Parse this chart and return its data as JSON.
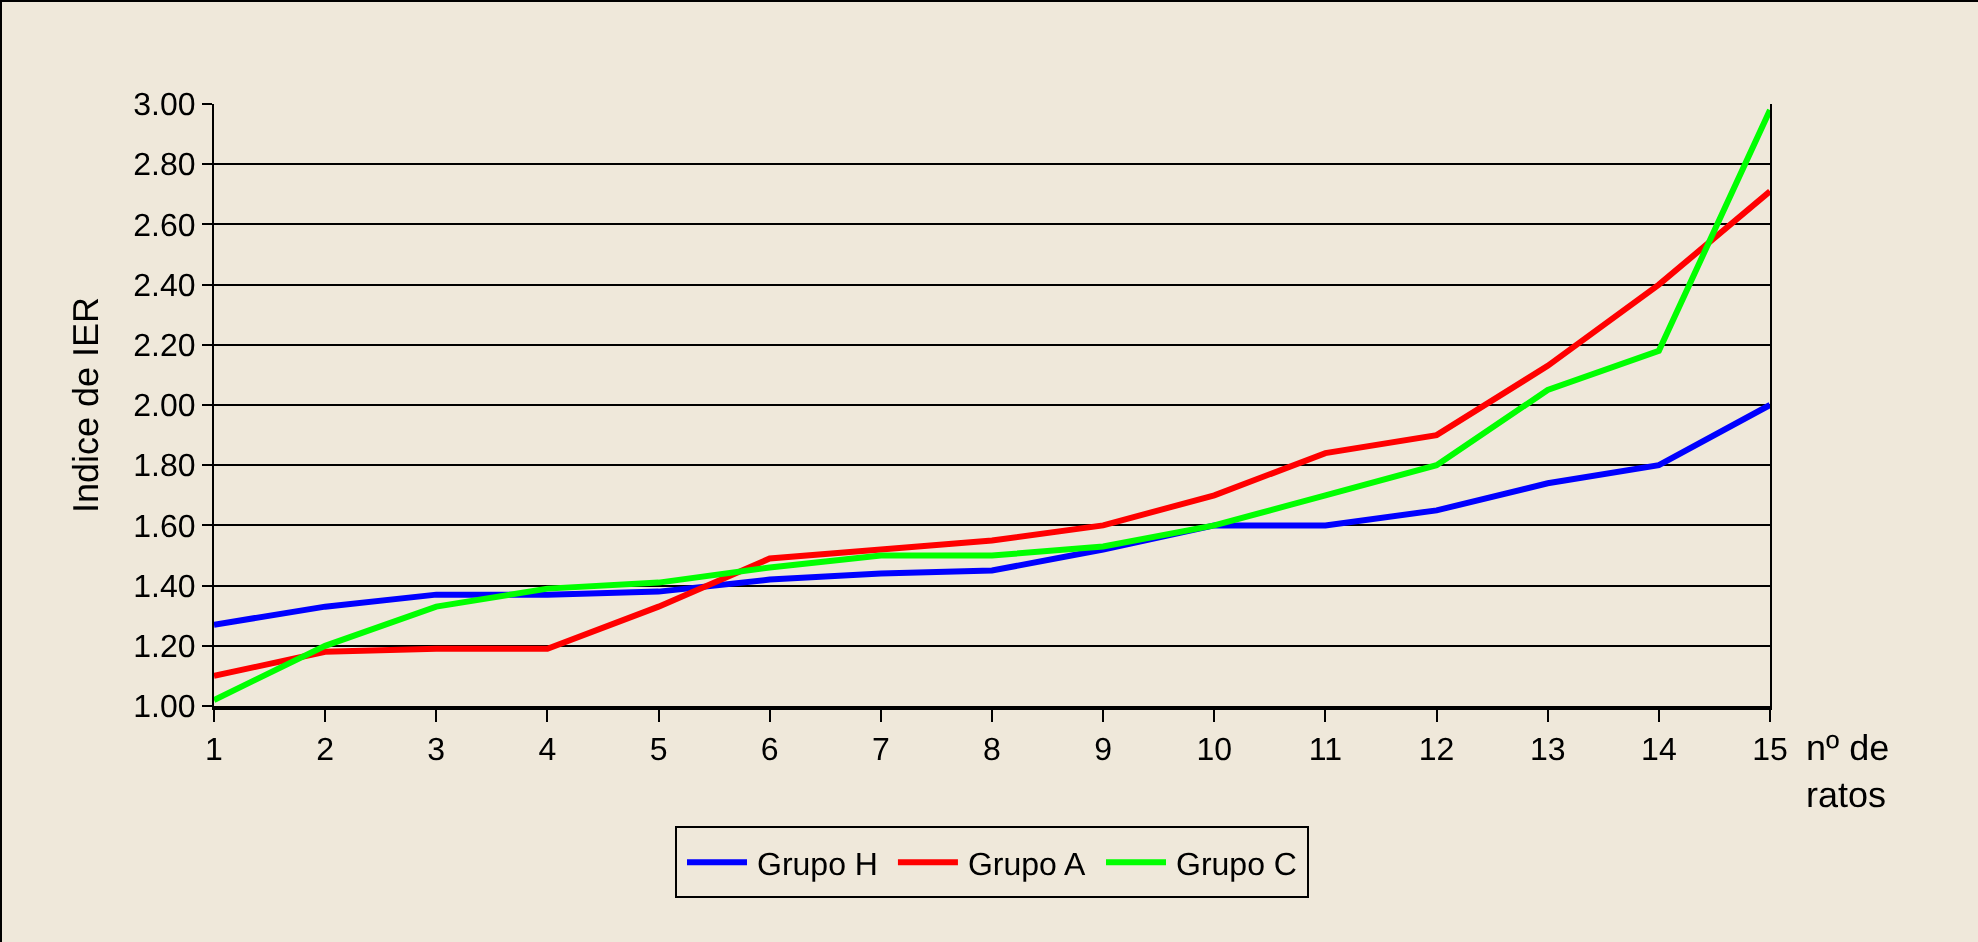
{
  "chart_data": {
    "type": "line",
    "xlabel": "nº de ratos",
    "ylabel": "Indice de IER",
    "x": [
      1,
      2,
      3,
      4,
      5,
      6,
      7,
      8,
      9,
      10,
      11,
      12,
      13,
      14,
      15
    ],
    "xlim": [
      1,
      15
    ],
    "xticks": [
      1,
      2,
      3,
      4,
      5,
      6,
      7,
      8,
      9,
      10,
      11,
      12,
      13,
      14,
      15
    ],
    "ylim": [
      1,
      3
    ],
    "yticks": [
      {
        "value": 1,
        "label": "1.00"
      },
      {
        "value": 1.2,
        "label": "1.20"
      },
      {
        "value": 1.4,
        "label": "1.40"
      },
      {
        "value": 1.6,
        "label": "1.60"
      },
      {
        "value": 1.8,
        "label": "1.80"
      },
      {
        "value": 2,
        "label": "2.00"
      },
      {
        "value": 2.2,
        "label": "2.20"
      },
      {
        "value": 2.4,
        "label": "2.40"
      },
      {
        "value": 2.6,
        "label": "2.60"
      },
      {
        "value": 2.8,
        "label": "2.80"
      },
      {
        "value": 3,
        "label": "3.00"
      }
    ],
    "grid": "y",
    "legend": "bottom",
    "marker": "none",
    "line_style": "solid",
    "series": [
      {
        "name": "Grupo H",
        "color": "#0000ff",
        "values": [
          1.27,
          1.33,
          1.37,
          1.37,
          1.38,
          1.42,
          1.44,
          1.45,
          1.52,
          1.6,
          1.6,
          1.65,
          1.74,
          1.8,
          2.0
        ]
      },
      {
        "name": "Grupo A",
        "color": "#ff0000",
        "values": [
          1.1,
          1.18,
          1.19,
          1.19,
          1.33,
          1.49,
          1.52,
          1.55,
          1.6,
          1.7,
          1.84,
          1.9,
          2.13,
          2.4,
          2.71
        ]
      },
      {
        "name": "Grupo C",
        "color": "#00ff00",
        "values": [
          1.02,
          1.2,
          1.33,
          1.39,
          1.41,
          1.46,
          1.5,
          1.5,
          1.53,
          1.6,
          1.7,
          1.8,
          2.05,
          2.18,
          2.98
        ]
      }
    ]
  }
}
